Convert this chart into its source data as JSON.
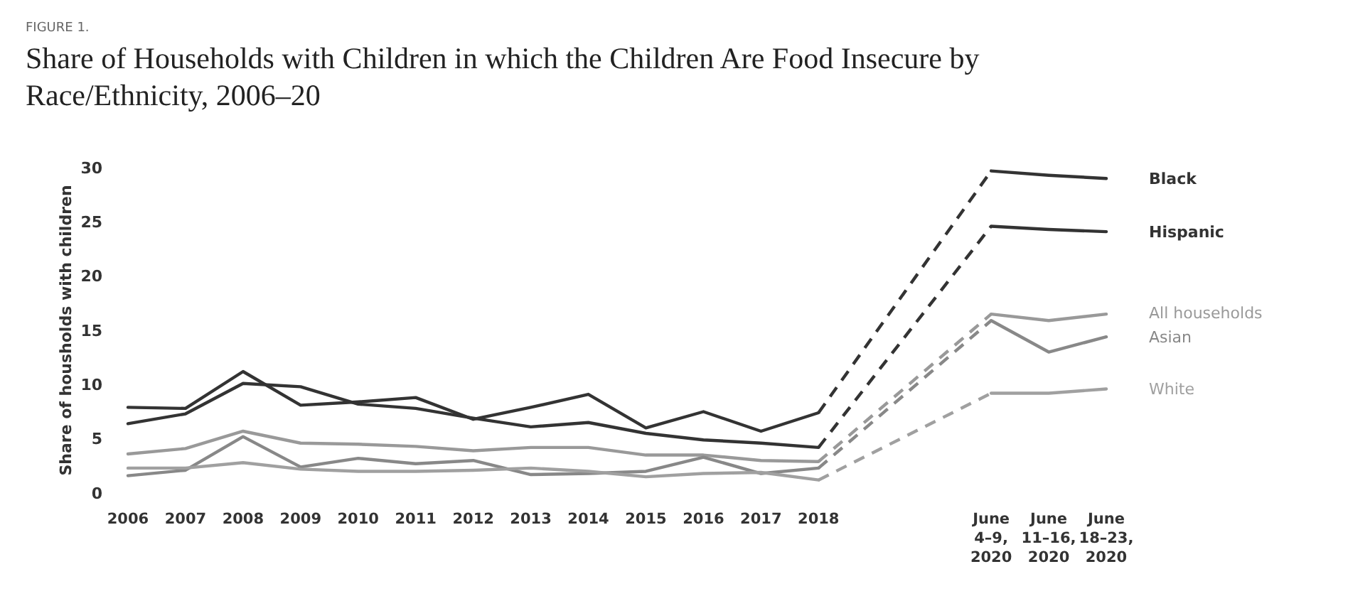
{
  "chart_data": {
    "type": "line",
    "title": "Share of Households with Children in which the Children Are Food Insecure by Race/Ethnicity, 2006–20",
    "annotations": [
      "FIGURE 1."
    ],
    "ylabel": "Share of housholds with children",
    "categories": [
      "2006",
      "2007",
      "2008",
      "2009",
      "2010",
      "2011",
      "2012",
      "2013",
      "2014",
      "2015",
      "2016",
      "2017",
      "2018",
      null,
      null,
      "June 4–9, 2020",
      "June 11–16, 2020",
      "June 18–23, 2020"
    ],
    "ylim": [
      0,
      30
    ],
    "yticks": [
      0,
      5,
      10,
      15,
      20,
      25,
      30
    ],
    "grid": false,
    "legend": false,
    "marker": "none",
    "line_style": "solid",
    "series": [
      {
        "name": "Black",
        "color": "#333333",
        "values": [
          7.9,
          7.8,
          11.2,
          8.1,
          8.4,
          8.8,
          6.8,
          7.9,
          9.1,
          6.0,
          7.5,
          5.7,
          7.4,
          null,
          null,
          29.7,
          29.3,
          29.0
        ]
      },
      {
        "name": "Hispanic",
        "color": "#333333",
        "values": [
          6.4,
          7.3,
          10.1,
          9.8,
          8.2,
          7.8,
          6.9,
          6.1,
          6.5,
          5.5,
          4.9,
          4.6,
          4.2,
          null,
          null,
          24.6,
          24.3,
          24.1
        ]
      },
      {
        "name": "All households",
        "color": "#999999",
        "values": [
          3.6,
          4.1,
          5.7,
          4.6,
          4.5,
          4.3,
          3.9,
          4.2,
          4.2,
          3.5,
          3.5,
          3.0,
          2.9,
          null,
          null,
          16.5,
          15.9,
          16.5
        ]
      },
      {
        "name": "Asian",
        "color": "#888888",
        "values": [
          1.6,
          2.1,
          5.2,
          2.4,
          3.2,
          2.7,
          3.0,
          1.7,
          1.8,
          2.0,
          3.3,
          1.8,
          2.3,
          null,
          null,
          15.9,
          13.0,
          14.4
        ]
      },
      {
        "name": "White",
        "color": "#a0a0a0",
        "values": [
          2.3,
          2.3,
          2.8,
          2.2,
          2.0,
          2.0,
          2.1,
          2.3,
          2.0,
          1.5,
          1.8,
          1.9,
          1.2,
          null,
          null,
          9.2,
          9.2,
          9.6
        ]
      }
    ]
  }
}
